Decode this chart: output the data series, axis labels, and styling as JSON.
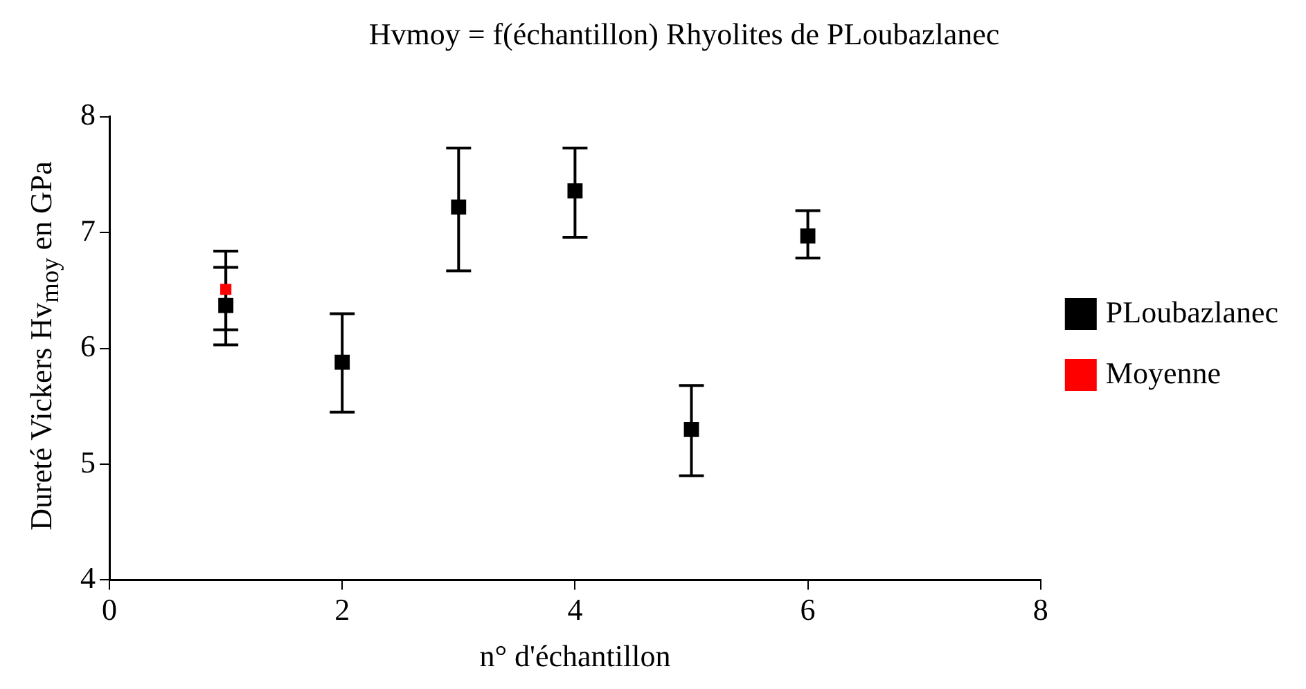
{
  "chart_data": {
    "type": "scatter",
    "title": "Hvmoy = f(échantillon) Rhyolites de PLoubazlanec",
    "xlabel": "n° d'échantillon",
    "ylabel": "Dureté Vickers Hv$_{moy}$ en GPa",
    "series": [
      {
        "name": "PLoubazlanec",
        "color": "#000000",
        "marker": "square",
        "x": [
          1,
          2,
          3,
          4,
          5,
          6
        ],
        "values": [
          6.37,
          5.88,
          7.22,
          7.36,
          5.3,
          6.97
        ],
        "errors": [
          [
            6.03,
            6.84
          ],
          [
            5.45,
            6.3
          ],
          [
            6.67,
            7.73
          ],
          [
            6.96,
            7.73
          ],
          [
            4.9,
            5.68
          ],
          [
            6.78,
            7.19
          ]
        ]
      },
      {
        "name": "Moyenne",
        "color": "#ff0000",
        "marker": "square",
        "x": [
          1
        ],
        "values": [
          6.51
        ],
        "errors": [
          [
            6.16,
            6.7
          ]
        ]
      }
    ],
    "xlim": [
      0,
      8
    ],
    "xticks": [
      0,
      2,
      4,
      6,
      8
    ],
    "ylim": [
      4,
      8
    ],
    "yticks": [
      4,
      5,
      6,
      7,
      8
    ],
    "grid": false,
    "legend": "right"
  }
}
